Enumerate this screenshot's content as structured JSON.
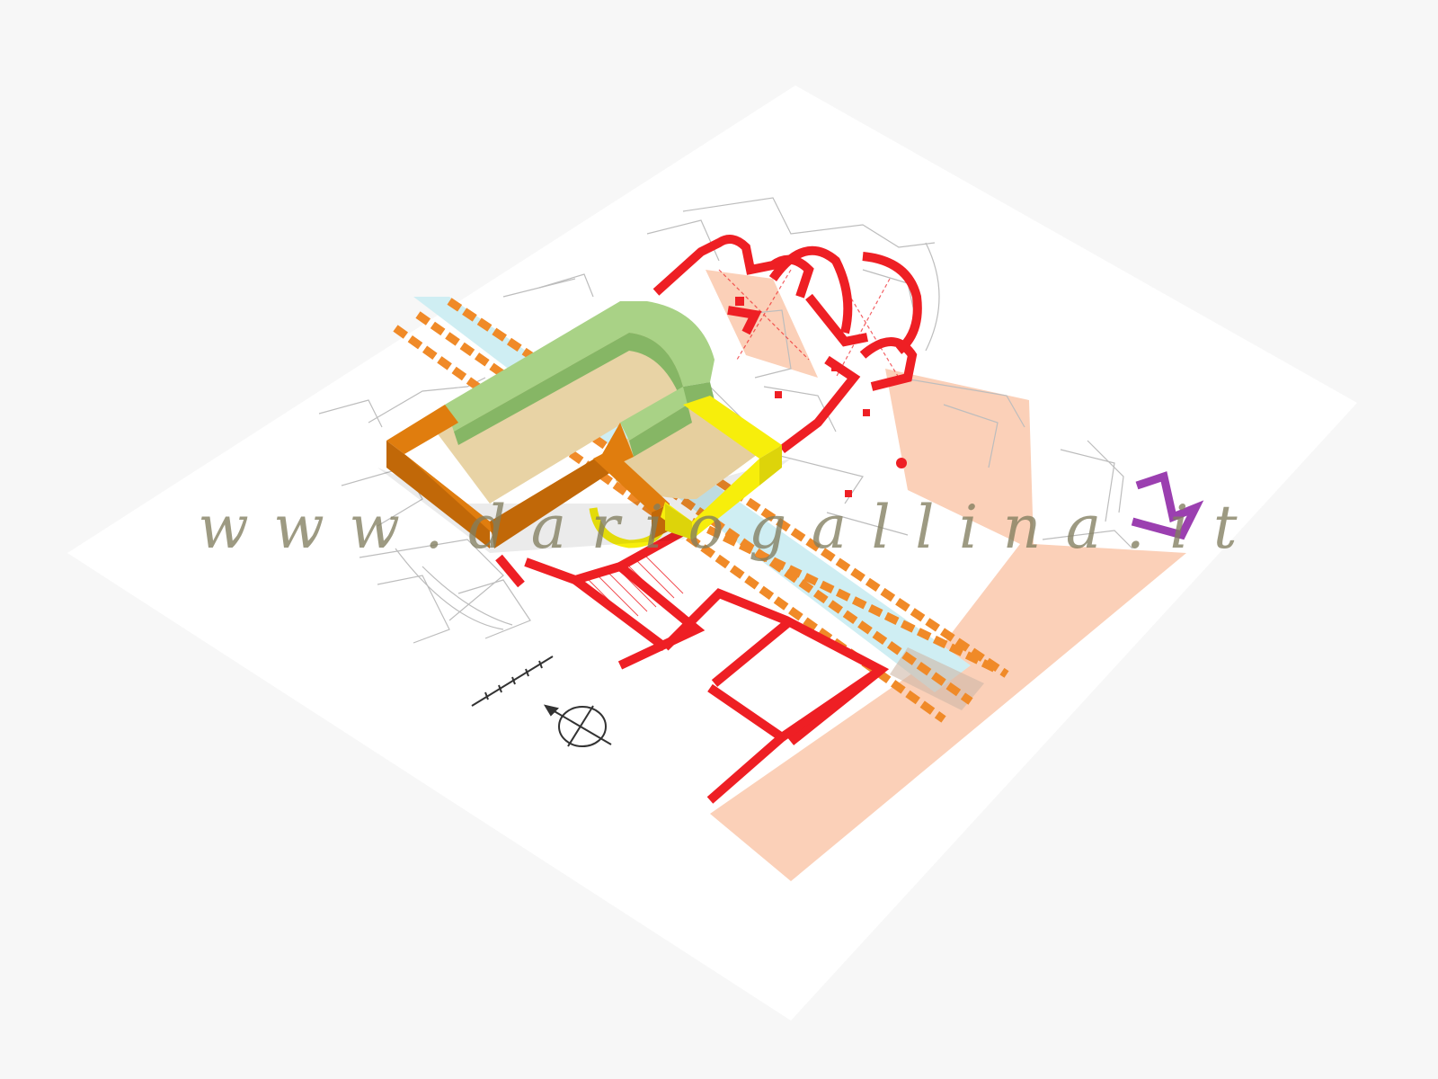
{
  "watermark": {
    "text": "w w w . d a r i o g a l l i n a . i t"
  },
  "colors": {
    "background": "#f7f7f7",
    "sheet": "#ffffff",
    "linework": "#b8b8b8",
    "wall_red": "#ee1f24",
    "wall_green": "#a9d286",
    "wall_green_shade": "#86b665",
    "wall_orange": "#e07d0e",
    "wall_orange_shade": "#c16808",
    "wall_yellow": "#f7ee0b",
    "floor": "#e8d3a5",
    "salmon_area": "#fbd0b8",
    "dashed_orange": "#f08a28",
    "channel_blue": "#cfeef3",
    "wall_purple": "#9b3fb0",
    "watermark": "#827d5f"
  },
  "legend": {
    "scale_bar_icon": "scale-bar",
    "north_arrow_icon": "north-arrow"
  }
}
